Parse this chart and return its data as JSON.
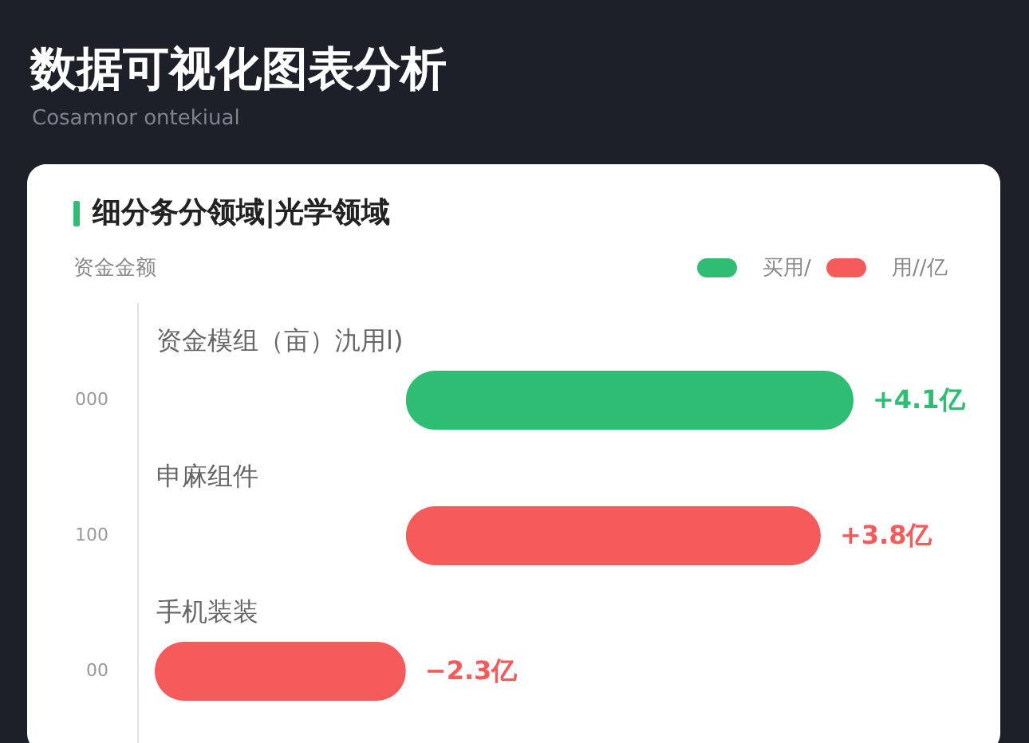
{
  "chart_data": {
    "type": "bar",
    "orientation": "horizontal",
    "title": "数据可视化图表分析",
    "subtitle": "Cosamnor ontekiual",
    "ylabel": "资金金额",
    "annotations": [
      "细分务分领域|光学领域",
      "000",
      "100",
      "00"
    ],
    "categories": [
      "资金模组（亩）氿用l)",
      "申麻组件",
      "手机装装"
    ],
    "series": [
      {
        "name": "买用/",
        "color": "#2ebd73",
        "values": [
          4.1,
          null,
          null
        ],
        "value_labels": [
          "+4.1亿",
          null,
          null
        ]
      },
      {
        "name": "用//亿",
        "color": "#f65b5b",
        "values": [
          null,
          3.8,
          -2.3
        ],
        "value_labels": [
          null,
          "+3.8亿",
          "−2.3亿"
        ]
      }
    ],
    "legend": "top right"
  }
}
